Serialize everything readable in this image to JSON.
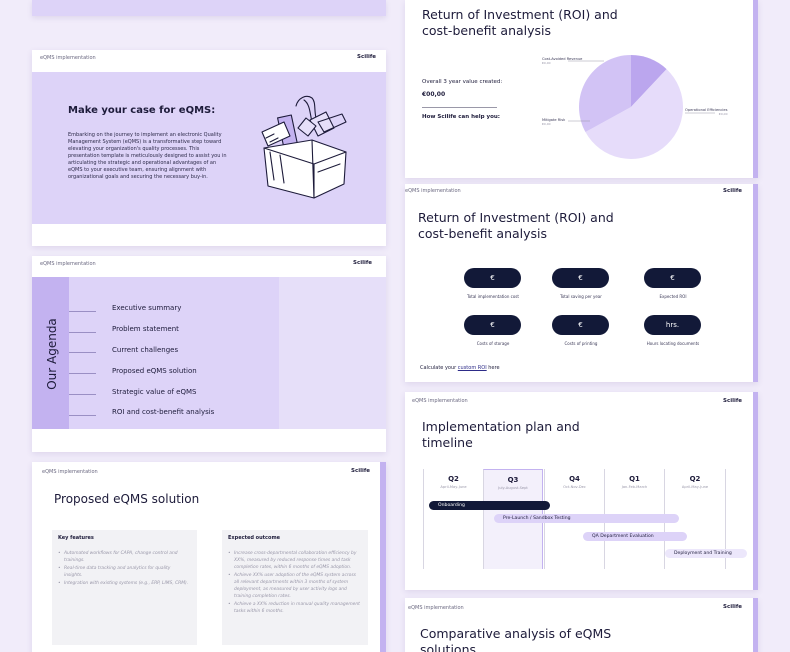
{
  "colors": {
    "background": "#f1ecfa",
    "slide_bg": "#ffffff",
    "lavender": "#ddd3f8",
    "lavender_dark": "#c3b2f0",
    "navy": "#121938",
    "pie_light": "#e6dcfa",
    "pie_mid": "#d2c3f5",
    "pie_dark": "#bba6ee"
  },
  "brand": "Scilife",
  "header": "eQMS implementation",
  "make_case": {
    "title": "Make your case for eQMS:",
    "body": "Embarking on the journey to implement an electronic Quality Management System (eQMS) is a transformative step toward elevating your organization's quality processes. This presentation template is meticulously designed to assist you in articulating the strategic and operational advantages of an eQMS to your executive team, ensuring alignment with organizational goals and securing the necessary buy-in.",
    "illustration_icon": "toolbox-icon"
  },
  "agenda": {
    "title": "Our Agenda",
    "items": [
      "Executive summary",
      "Problem statement",
      "Current challenges",
      "Proposed eQMS solution",
      "Strategic value of eQMS",
      "ROI and cost-benefit analysis"
    ]
  },
  "proposed": {
    "title": "Proposed eQMS solution",
    "features": {
      "heading": "Key features",
      "items": [
        "Automated workflows for CAPA, change control and trainings.",
        "Real-time data tracking and analytics for quality insights.",
        "Integration with existing systems (e.g., ERP, LIMS, CRM)."
      ]
    },
    "outcome": {
      "heading": "Expected outcome",
      "items": [
        "Increase cross-departmental collaboration efficiency by XX%, measured by reduced response times and task completion rates, within 6 months of eQMS adoption.",
        "Achieve XX% user adoption of the eQMS system across all relevant departments within 3 months of system deployment, as measured by user activity logs and training completion rates.",
        "Achieve a XX% reduction in manual quality management tasks within 6 months."
      ]
    }
  },
  "roi_top": {
    "title": "Return of Investment (ROI) and cost-benefit analysis",
    "value_label": "Overall 3 year value created:",
    "value": "€00,00",
    "help": "How Scilife can help you:",
    "pie": {
      "labels": [
        {
          "name": "Cost-Avoided Revenue",
          "value": "€0,00"
        },
        {
          "name": "Operational Efficiencies",
          "value": "€0,00"
        },
        {
          "name": "Mitigate Risk",
          "value": "€0,00"
        }
      ]
    }
  },
  "chart_data": {
    "type": "pie",
    "labels": [
      "Cost-Avoided Revenue",
      "Operational Efficiencies",
      "Mitigate Risk"
    ],
    "values": [
      12,
      55,
      33
    ]
  },
  "roi_mid": {
    "title": "Return of Investment (ROI) and cost-benefit analysis",
    "metrics": [
      {
        "value": "€",
        "label": "Total implementation cost"
      },
      {
        "value": "€",
        "label": "Total saving per year"
      },
      {
        "value": "€",
        "label": "Expected ROI"
      },
      {
        "value": "€",
        "label": "Costs of storage"
      },
      {
        "value": "€",
        "label": "Costs of printing"
      },
      {
        "value": "hrs.",
        "label": "Hours locating documents"
      }
    ],
    "calc_prefix": "Calculate your",
    "calc_link": "custom ROI",
    "calc_suffix": "here"
  },
  "plan": {
    "title": "Implementation plan and timeline",
    "quarters": [
      {
        "q": "Q2",
        "months": "April-May-June"
      },
      {
        "q": "Q3",
        "months": "July-August-Sept"
      },
      {
        "q": "Q4",
        "months": "Oct-Nov-Dec"
      },
      {
        "q": "Q1",
        "months": "Jan-Feb-March"
      },
      {
        "q": "Q2",
        "months": "April-May-June"
      }
    ],
    "tasks": [
      "Onboarding",
      "Pre-Launch / Sandbox Testing",
      "QA Department Evaluation",
      "Deployment and Training"
    ]
  },
  "comparative": {
    "title": "Comparative analysis of eQMS solutions"
  }
}
